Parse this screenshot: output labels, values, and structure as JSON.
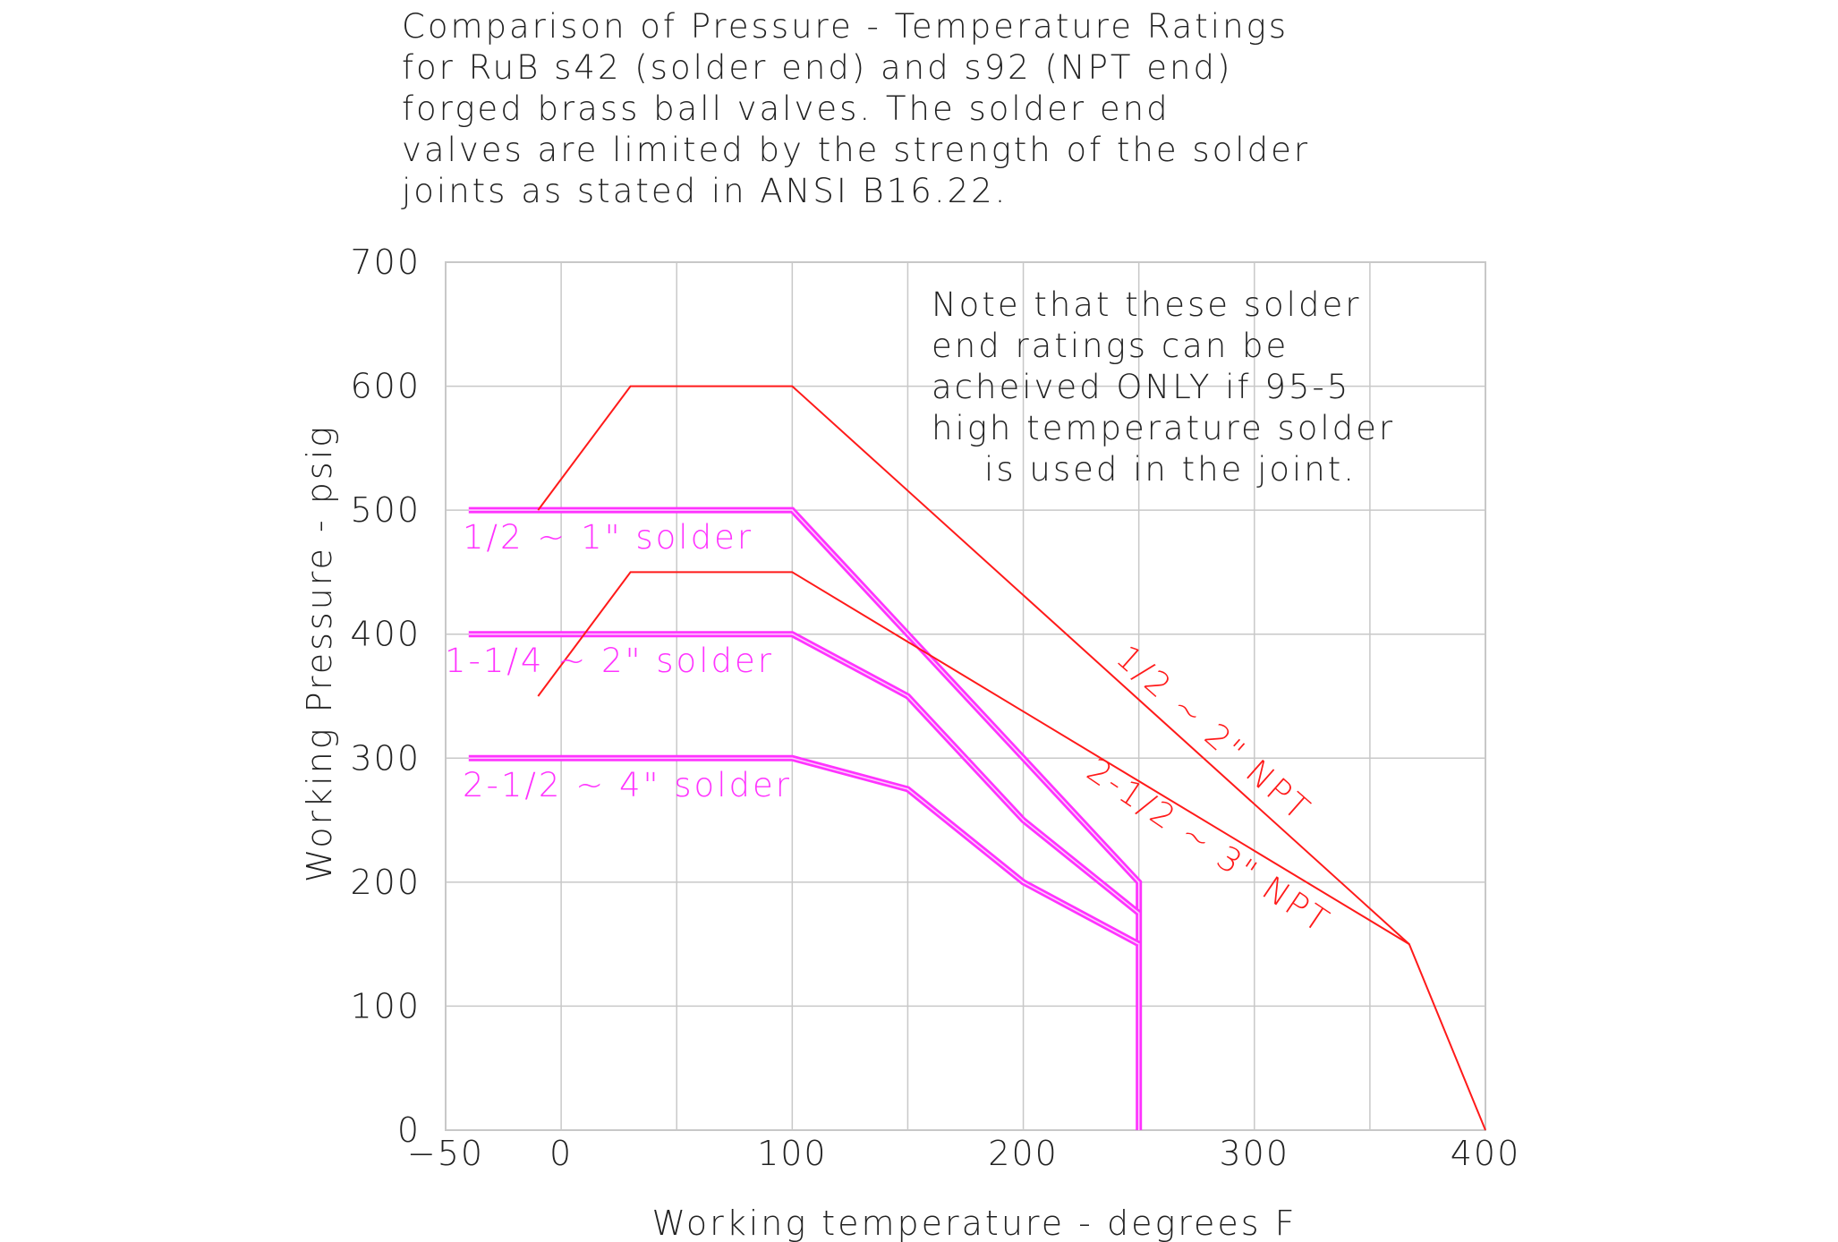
{
  "chart_data": {
    "type": "line",
    "title_lines": [
      "Comparison of Pressure - Temperature Ratings",
      "for RuB s42 (solder end) and s92 (NPT end)",
      "forged brass ball valves.  The solder end",
      "valves are limited by the strength of the solder",
      "joints as stated in ANSI B16.22."
    ],
    "note_lines": [
      "Note that these solder",
      "end ratings can be",
      "acheived ONLY if 95-5",
      "high temperature solder",
      "    is used in the joint."
    ],
    "xlabel": "Working temperature - degrees F",
    "ylabel": "Working Pressure - psig",
    "xlim": [
      -50,
      400
    ],
    "ylim": [
      0,
      700
    ],
    "x_ticks": [
      "-50",
      "0",
      "100",
      "200",
      "300",
      "400"
    ],
    "y_ticks": [
      "0",
      "100",
      "200",
      "300",
      "400",
      "500",
      "600",
      "700"
    ],
    "grid": true,
    "colors": {
      "solder": "#ff33ff",
      "npt": "#ff1a1a",
      "grid": "#c8c8c8",
      "text": "#222222"
    },
    "series": [
      {
        "name": "1/2 ~ 1\" solder",
        "kind": "solder",
        "x": [
          -40,
          100,
          150,
          200,
          250,
          250
        ],
        "y": [
          500,
          500,
          400,
          300,
          200,
          0
        ]
      },
      {
        "name": "1-1/4 ~ 2\" solder",
        "kind": "solder",
        "x": [
          -40,
          100,
          150,
          200,
          250
        ],
        "y": [
          400,
          400,
          350,
          250,
          175
        ]
      },
      {
        "name": "2-1/2 ~ 4\" solder",
        "kind": "solder",
        "x": [
          -40,
          100,
          150,
          200,
          250
        ],
        "y": [
          300,
          300,
          275,
          200,
          150
        ]
      },
      {
        "name": "1/2 ~ 2\" NPT",
        "kind": "npt",
        "x": [
          -10,
          30,
          100,
          367,
          400
        ],
        "y": [
          500,
          600,
          600,
          150,
          0
        ]
      },
      {
        "name": "2-1/2 ~ 3\" NPT",
        "kind": "npt",
        "x": [
          -10,
          30,
          100,
          367
        ],
        "y": [
          350,
          450,
          450,
          150
        ]
      }
    ]
  }
}
